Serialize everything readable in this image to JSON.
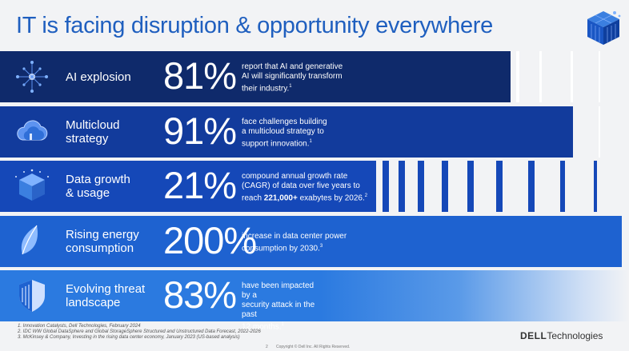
{
  "title": "IT is facing disruption & opportunity everywhere",
  "rows": [
    {
      "label_lines": [
        "AI explosion"
      ],
      "percent": "81%",
      "desc_lines": [
        "report that AI and generative",
        "AI will significantly transform",
        "their industry."
      ],
      "footnote": "1",
      "color": "#0f2a6b",
      "icon": "ai-network-icon"
    },
    {
      "label_lines": [
        "Multicloud",
        "strategy"
      ],
      "percent": "91%",
      "desc_lines": [
        "face challenges building",
        "a multicloud strategy to",
        "support innovation."
      ],
      "footnote": "1",
      "color": "#123b9c",
      "icon": "cloud-icon"
    },
    {
      "label_lines": [
        "Data growth",
        "& usage"
      ],
      "percent": "21%",
      "desc_lines": [
        "compound annual growth rate",
        "(CAGR) of data over five years to"
      ],
      "desc_last_prefix": "reach ",
      "desc_last_bold": "221,000+",
      "desc_last_suffix": " exabytes by 2026.",
      "footnote": "2",
      "color": "#1548b8",
      "icon": "data-cube-icon"
    },
    {
      "label_lines": [
        "Rising energy",
        "consumption"
      ],
      "percent": "200%",
      "desc_lines": [
        "increase in data center power",
        "consumption by 2030."
      ],
      "footnote": "3",
      "color": "#1e62d0",
      "icon": "leaf-icon"
    },
    {
      "label_lines": [
        "Evolving threat",
        "landscape"
      ],
      "percent": "83%",
      "desc_lines": [
        "have been impacted by a",
        "security attack in the past",
        "12 months."
      ],
      "footnote": "1",
      "color": "#2b7ae0",
      "icon": "shield-icon"
    }
  ],
  "footnotes": [
    "1. Innovation Catalysts, Dell Technologies, February 2024",
    "2. IDC WW Global DataSphere and Global StorageSphere Structured and Unstructured Data Forecast, 2022-2026",
    "3. McKinsey & Company, Investing in the rising data center economy, January 2023 (US-based analysis)"
  ],
  "page_number": "2",
  "copyright": "Copyright © Dell Inc. All Rights Reserved.",
  "brand": {
    "name": "DELL",
    "suffix": "Technologies"
  }
}
